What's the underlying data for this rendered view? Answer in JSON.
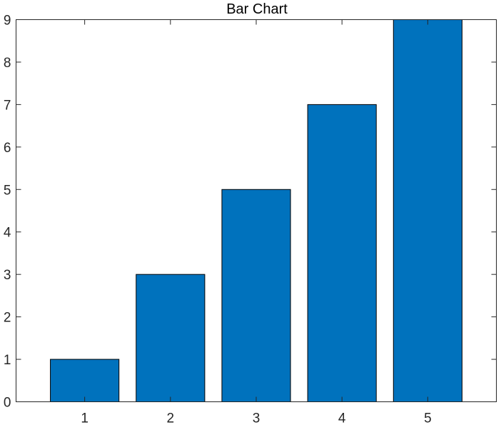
{
  "chart_data": {
    "type": "bar",
    "title": "Bar Chart",
    "xlabel": "",
    "ylabel": "",
    "categories": [
      "1",
      "2",
      "3",
      "4",
      "5"
    ],
    "x": [
      1,
      2,
      3,
      4,
      5
    ],
    "values": [
      1,
      3,
      5,
      7,
      9
    ],
    "xlim": [
      0.2,
      5.8
    ],
    "ylim": [
      0,
      9
    ],
    "xticks": [
      "1",
      "2",
      "3",
      "4",
      "5"
    ],
    "yticks": [
      "0",
      "1",
      "2",
      "3",
      "4",
      "5",
      "6",
      "7",
      "8",
      "9"
    ],
    "bar_color": "#0072BD",
    "edge_color": "#000000",
    "grid": false,
    "legend": "none"
  }
}
